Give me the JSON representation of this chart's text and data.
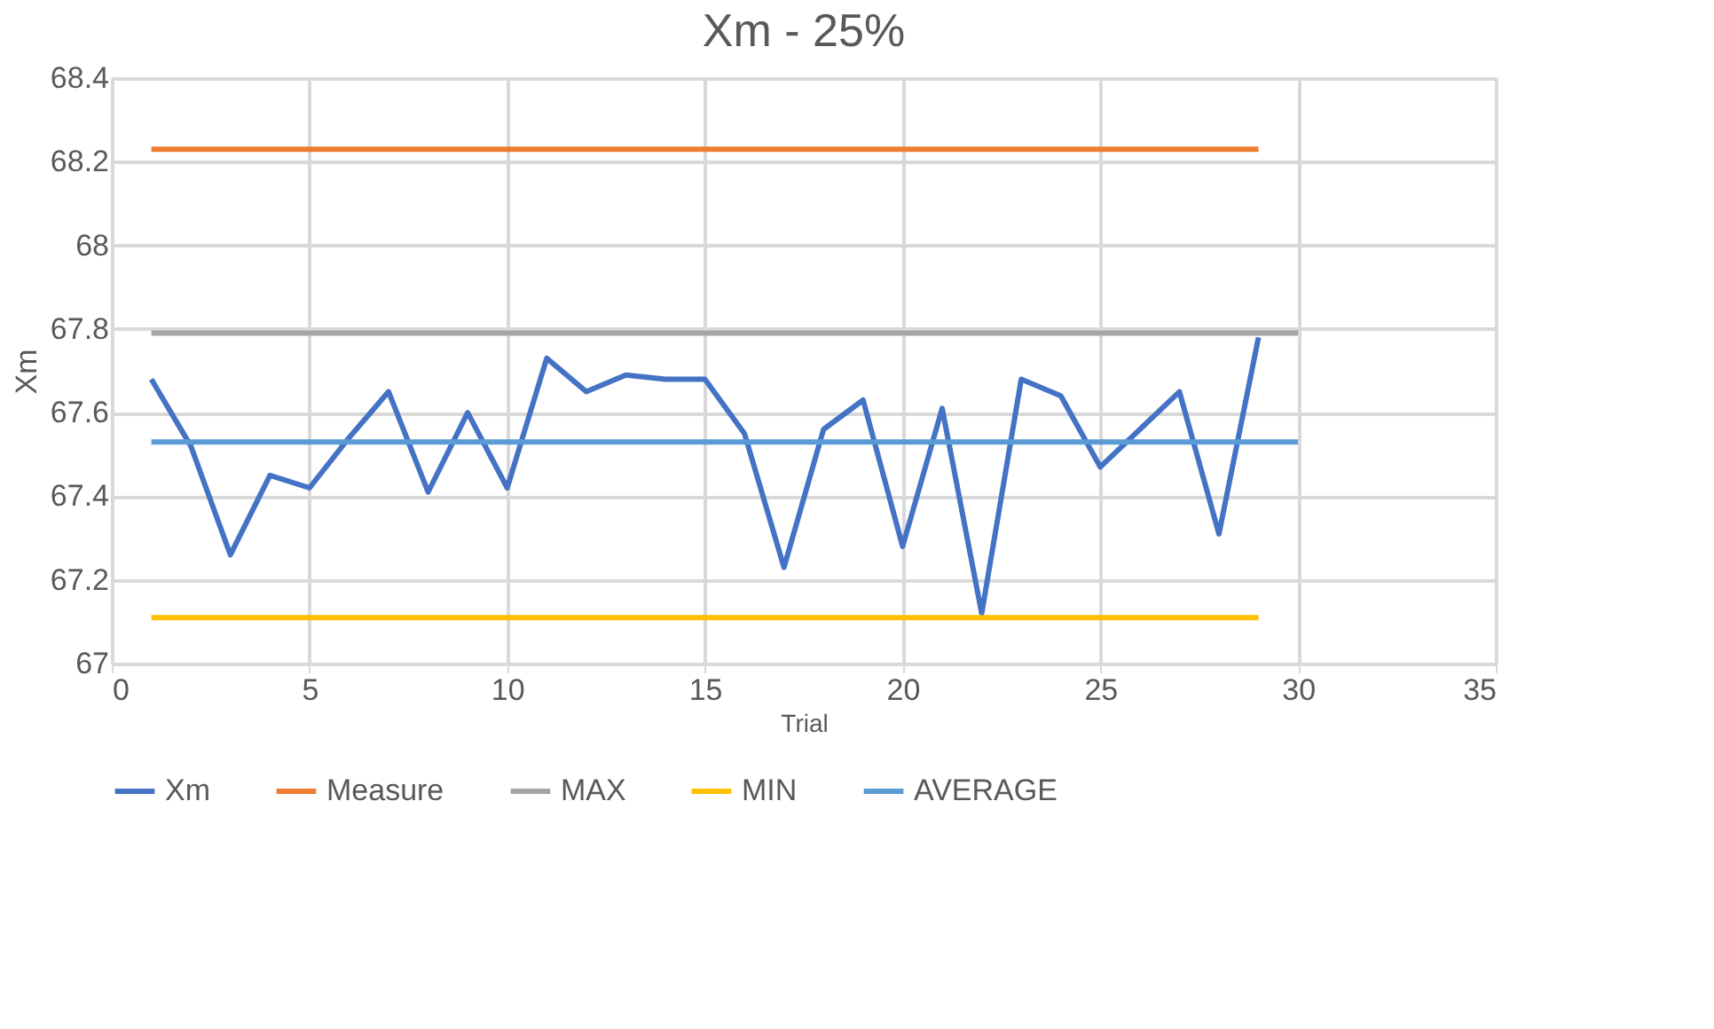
{
  "chart_data": {
    "type": "line",
    "title": "Xm - 25%",
    "xlabel": "Trial",
    "ylabel": "Xm",
    "xlim": [
      0,
      35
    ],
    "xticks": [
      0,
      5,
      10,
      15,
      20,
      25,
      30,
      35
    ],
    "ylim": [
      67,
      68.4
    ],
    "yticks": [
      67,
      67.2,
      67.4,
      67.6,
      67.8,
      68,
      68.2,
      68.4
    ],
    "grid": true,
    "legend": "bottom",
    "marker": "none",
    "line_style": "solid",
    "series": [
      {
        "name": "Xm",
        "color": "#4472c4",
        "x": [
          1,
          2,
          3,
          4,
          5,
          6,
          7,
          8,
          9,
          10,
          11,
          12,
          13,
          14,
          15,
          16,
          17,
          18,
          19,
          20,
          21,
          22,
          23,
          24,
          25,
          26,
          27,
          28,
          29
        ],
        "values": [
          67.68,
          67.52,
          67.26,
          67.45,
          67.42,
          67.54,
          67.65,
          67.41,
          67.6,
          67.42,
          67.73,
          67.65,
          67.69,
          67.68,
          67.68,
          67.55,
          67.23,
          67.56,
          67.63,
          67.28,
          67.61,
          67.12,
          67.68,
          67.64,
          67.47,
          67.56,
          67.65,
          67.31,
          67.78
        ]
      },
      {
        "name": "Measure",
        "color": "#ed7d31",
        "x": [
          1,
          29
        ],
        "values": [
          68.23,
          68.23
        ]
      },
      {
        "name": "MAX",
        "color": "#a5a5a5",
        "x": [
          1,
          30
        ],
        "values": [
          67.79,
          67.79
        ]
      },
      {
        "name": "MIN",
        "color": "#ffc000",
        "x": [
          1,
          29
        ],
        "values": [
          67.11,
          67.11
        ]
      },
      {
        "name": "AVERAGE",
        "color": "#5b9bd5",
        "x": [
          1,
          30
        ],
        "values": [
          67.53,
          67.53
        ]
      }
    ]
  }
}
